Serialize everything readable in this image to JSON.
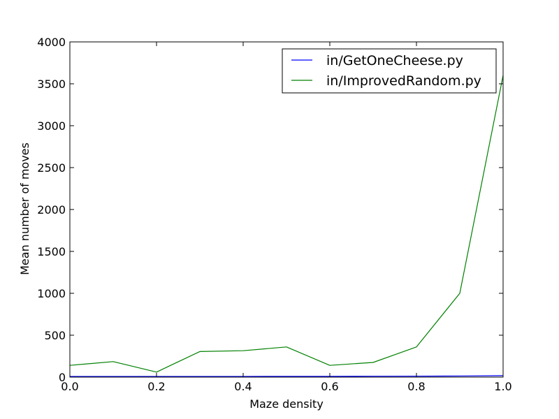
{
  "chart_data": {
    "type": "line",
    "title": "",
    "xlabel": "Maze density",
    "ylabel": "Mean number of moves",
    "xlim": [
      0.0,
      1.0
    ],
    "ylim": [
      0,
      4000
    ],
    "x_ticks": [
      "0.0",
      "0.2",
      "0.4",
      "0.6",
      "0.8",
      "1.0"
    ],
    "y_ticks": [
      "0",
      "500",
      "1000",
      "1500",
      "2000",
      "2500",
      "3000",
      "3500",
      "4000"
    ],
    "grid": false,
    "legend_position": "top-right",
    "x": [
      0.0,
      0.1,
      0.2,
      0.3,
      0.4,
      0.5,
      0.6,
      0.7,
      0.8,
      0.9,
      1.0
    ],
    "series": [
      {
        "name": "in/GetOneCheese.py",
        "color": "#0000ff",
        "values": [
          8,
          8,
          8,
          8,
          8,
          9,
          9,
          10,
          11,
          13,
          18
        ]
      },
      {
        "name": "in/ImprovedRandom.py",
        "color": "#008000",
        "values": [
          140,
          185,
          60,
          305,
          315,
          360,
          140,
          175,
          360,
          1000,
          3600
        ]
      }
    ]
  }
}
